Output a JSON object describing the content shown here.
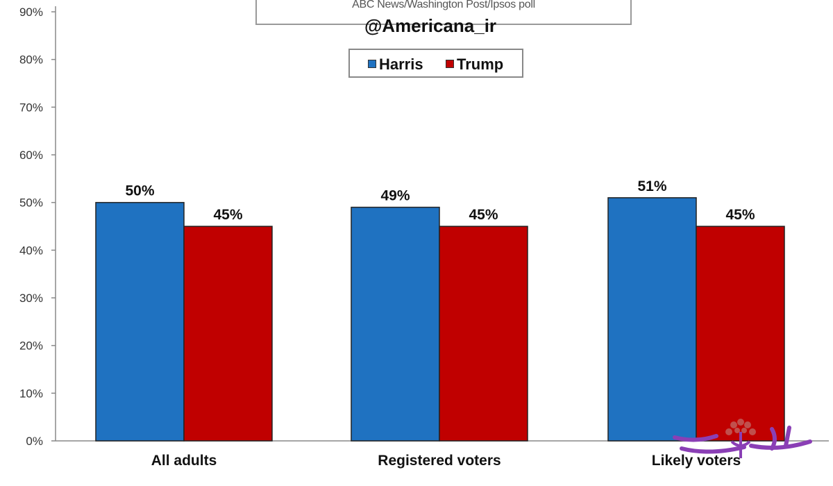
{
  "subtitle": "ABC News/Washington  Post/Ipsos poll",
  "handle": "@Americana_ir",
  "chart_data": {
    "type": "bar",
    "categories": [
      "All adults",
      "Registered voters",
      "Likely voters"
    ],
    "series": [
      {
        "name": "Harris",
        "color": "#1f72c1",
        "values": [
          50,
          49,
          51
        ]
      },
      {
        "name": "Trump",
        "color": "#c00000",
        "values": [
          45,
          45,
          45
        ]
      }
    ],
    "data_labels": [
      [
        "50%",
        "49%",
        "51%"
      ],
      [
        "45%",
        "45%",
        "45%"
      ]
    ],
    "ylim": [
      0,
      90
    ],
    "y_ticks": [
      "0%",
      "10%",
      "20%",
      "30%",
      "40%",
      "50%",
      "60%",
      "70%",
      "80%",
      "90%"
    ],
    "y_tick_values": [
      0,
      10,
      20,
      30,
      40,
      50,
      60,
      70,
      80,
      90
    ],
    "grid": false,
    "legend": "top-center"
  },
  "watermark": {
    "color": "#8a3fb5",
    "icon": "tree-logo-icon"
  }
}
